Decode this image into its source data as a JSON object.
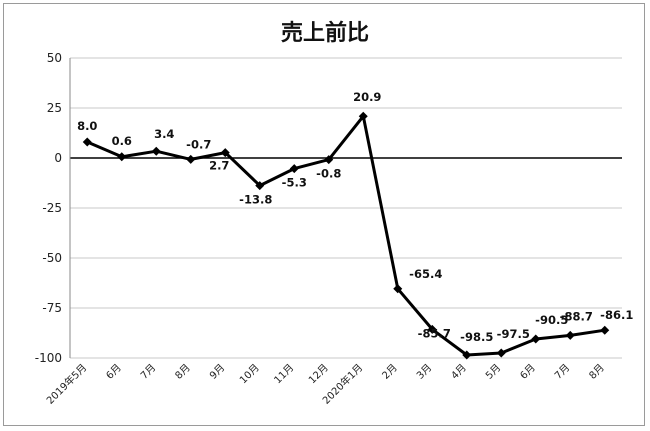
{
  "chart_data": {
    "type": "line",
    "title": "売上前比",
    "xlabel": "",
    "ylabel": "",
    "ylim": [
      -100,
      50
    ],
    "yticks": [
      50,
      25,
      0,
      -25,
      -50,
      -75,
      -100
    ],
    "grid": true,
    "categories": [
      "2019年5月",
      "6月",
      "7月",
      "8月",
      "9月",
      "10月",
      "11月",
      "12月",
      "2020年1月",
      "2月",
      "3月",
      "4月",
      "5月",
      "6月",
      "7月",
      "8月"
    ],
    "series": [
      {
        "values": [
          8.0,
          0.6,
          3.4,
          -0.7,
          2.7,
          -13.8,
          -5.3,
          -0.8,
          20.9,
          -65.4,
          -85.7,
          -98.5,
          -97.5,
          -90.5,
          -88.7,
          -86.1
        ],
        "labels": [
          "8.0",
          "0.6",
          "3.4",
          "-0.7",
          "2.7",
          "-13.8",
          "-5.3",
          "-0.8",
          "20.9",
          "-65.4",
          "-85.7",
          "-98.5",
          "-97.5",
          "-90.5",
          "-88.7",
          "-86.1"
        ],
        "color": "#000000",
        "marker": "diamond"
      }
    ]
  }
}
